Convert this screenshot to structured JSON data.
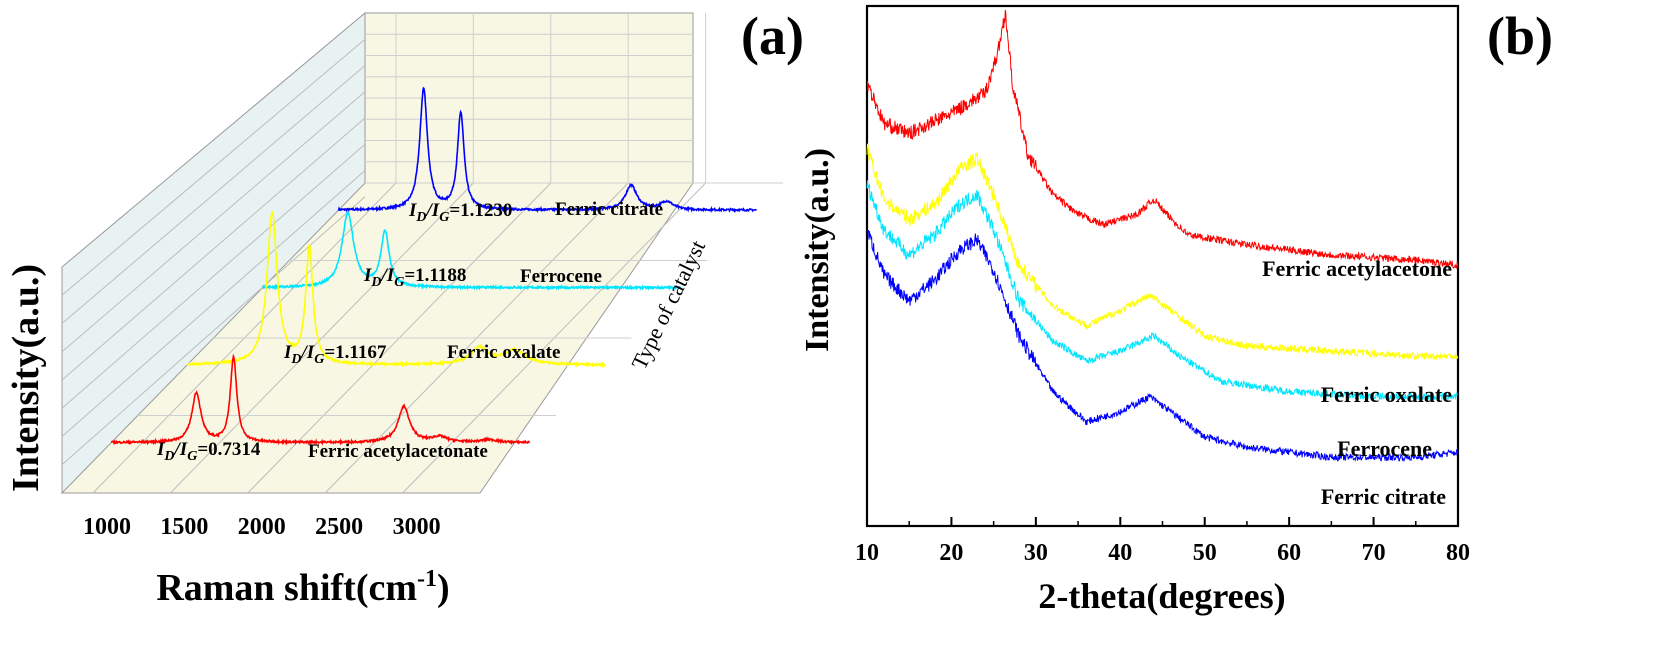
{
  "panels": {
    "a_label": "(a)",
    "b_label": "(b)"
  },
  "chart_data": [
    {
      "type": "line",
      "panel": "(a)",
      "projection": "3d-waterfall",
      "xlabel_main": "Raman shift(cm",
      "xlabel_sup": "-1",
      "xlabel_close": ")",
      "ylabel": "Intensity(a.u.)",
      "zlabel": "Type of catalyst",
      "xticks": [
        "1000",
        "1500",
        "2000",
        "2500",
        "3000"
      ],
      "xlim": [
        800,
        3500
      ],
      "y_axis_ticks_shown": false,
      "series": [
        {
          "name": "Ferric acetylacetonate",
          "color": "#ff0000",
          "ratio_label": "=0.7314",
          "peaks": [
            {
              "x": 1350,
              "h": 0.9,
              "w": 35
            },
            {
              "x": 1590,
              "h": 1.55,
              "w": 25
            },
            {
              "x": 2690,
              "h": 0.65,
              "w": 45
            },
            {
              "x": 2920,
              "h": 0.1,
              "w": 60
            },
            {
              "x": 3240,
              "h": 0.05,
              "w": 60
            }
          ]
        },
        {
          "name": "Ferric oxalate",
          "color": "#ffff00",
          "ratio_label": "=1.1167",
          "peaks": [
            {
              "x": 1350,
              "h": 2.75,
              "w": 40
            },
            {
              "x": 1590,
              "h": 2.1,
              "w": 28
            },
            {
              "x": 2690,
              "h": 0.3,
              "w": 70
            },
            {
              "x": 2920,
              "h": 0.25,
              "w": 90
            }
          ]
        },
        {
          "name": "Ferrocene",
          "color": "#00e5ff",
          "ratio_label": "=1.1188",
          "peaks": [
            {
              "x": 1350,
              "h": 1.35,
              "w": 45
            },
            {
              "x": 1590,
              "h": 1.0,
              "w": 32
            }
          ]
        },
        {
          "name": "Ferric citrate",
          "color": "#0000ff",
          "ratio_label": "=1.1230",
          "peaks": [
            {
              "x": 1350,
              "h": 2.2,
              "w": 30
            },
            {
              "x": 1590,
              "h": 1.75,
              "w": 26
            },
            {
              "x": 2690,
              "h": 0.45,
              "w": 45
            },
            {
              "x": 2920,
              "h": 0.15,
              "w": 50
            }
          ]
        }
      ],
      "ratio_prefix_I": "I",
      "ratio_sub_D": "D",
      "ratio_slash": "/",
      "ratio_sub_G": "G",
      "grid": true,
      "wall_color": "#e8f2f2",
      "floor_color": "#f7f7e4"
    },
    {
      "type": "line",
      "panel": "(b)",
      "xlabel": "2-theta(degrees)",
      "ylabel": "Intensity(a.u.)",
      "xlim": [
        10,
        80
      ],
      "xticks": [
        10,
        20,
        30,
        40,
        50,
        60,
        70,
        80
      ],
      "y_axis_ticks_shown": false,
      "series": [
        {
          "name": "Ferric acetylacetone",
          "color": "#ff0000",
          "points": [
            [
              10,
              0.86
            ],
            [
              12,
              0.78
            ],
            [
              15,
              0.76
            ],
            [
              20,
              0.8
            ],
            [
              24,
              0.84
            ],
            [
              25.5,
              0.92
            ],
            [
              26.4,
              1.0
            ],
            [
              27.2,
              0.86
            ],
            [
              29,
              0.72
            ],
            [
              32,
              0.64
            ],
            [
              35,
              0.6
            ],
            [
              38,
              0.58
            ],
            [
              42,
              0.6
            ],
            [
              44,
              0.63
            ],
            [
              45.5,
              0.6
            ],
            [
              48,
              0.56
            ],
            [
              55,
              0.54
            ],
            [
              65,
              0.52
            ],
            [
              75,
              0.51
            ],
            [
              80,
              0.5
            ]
          ]
        },
        {
          "name": "Ferric oxalate",
          "color": "#ffff00",
          "points": [
            [
              10,
              0.73
            ],
            [
              12,
              0.63
            ],
            [
              15,
              0.59
            ],
            [
              18,
              0.62
            ],
            [
              21,
              0.69
            ],
            [
              23,
              0.71
            ],
            [
              25,
              0.64
            ],
            [
              28,
              0.5
            ],
            [
              32,
              0.42
            ],
            [
              36,
              0.38
            ],
            [
              40,
              0.41
            ],
            [
              43.5,
              0.44
            ],
            [
              46,
              0.41
            ],
            [
              50,
              0.36
            ],
            [
              55,
              0.34
            ],
            [
              65,
              0.33
            ],
            [
              75,
              0.32
            ],
            [
              80,
              0.32
            ]
          ]
        },
        {
          "name": "Ferrocene",
          "color": "#00e5ff",
          "points": [
            [
              10,
              0.66
            ],
            [
              12,
              0.57
            ],
            [
              15,
              0.52
            ],
            [
              18,
              0.56
            ],
            [
              21,
              0.62
            ],
            [
              23,
              0.64
            ],
            [
              25,
              0.57
            ],
            [
              28,
              0.43
            ],
            [
              32,
              0.35
            ],
            [
              36,
              0.31
            ],
            [
              40,
              0.33
            ],
            [
              44,
              0.36
            ],
            [
              47,
              0.32
            ],
            [
              52,
              0.27
            ],
            [
              60,
              0.25
            ],
            [
              70,
              0.24
            ],
            [
              80,
              0.24
            ]
          ]
        },
        {
          "name": "Ferric citrate",
          "color": "#0000ff",
          "points": [
            [
              10,
              0.57
            ],
            [
              12,
              0.48
            ],
            [
              15,
              0.43
            ],
            [
              18,
              0.47
            ],
            [
              21,
              0.53
            ],
            [
              23,
              0.55
            ],
            [
              25,
              0.49
            ],
            [
              28,
              0.36
            ],
            [
              32,
              0.25
            ],
            [
              36,
              0.19
            ],
            [
              40,
              0.21
            ],
            [
              43.5,
              0.24
            ],
            [
              46,
              0.21
            ],
            [
              50,
              0.16
            ],
            [
              55,
              0.14
            ],
            [
              65,
              0.12
            ],
            [
              75,
              0.12
            ],
            [
              80,
              0.13
            ]
          ]
        }
      ],
      "label_order": [
        "Ferric acetylacetone",
        "Ferric oxalate",
        "Ferrocene",
        "Ferric citrate"
      ]
    }
  ]
}
